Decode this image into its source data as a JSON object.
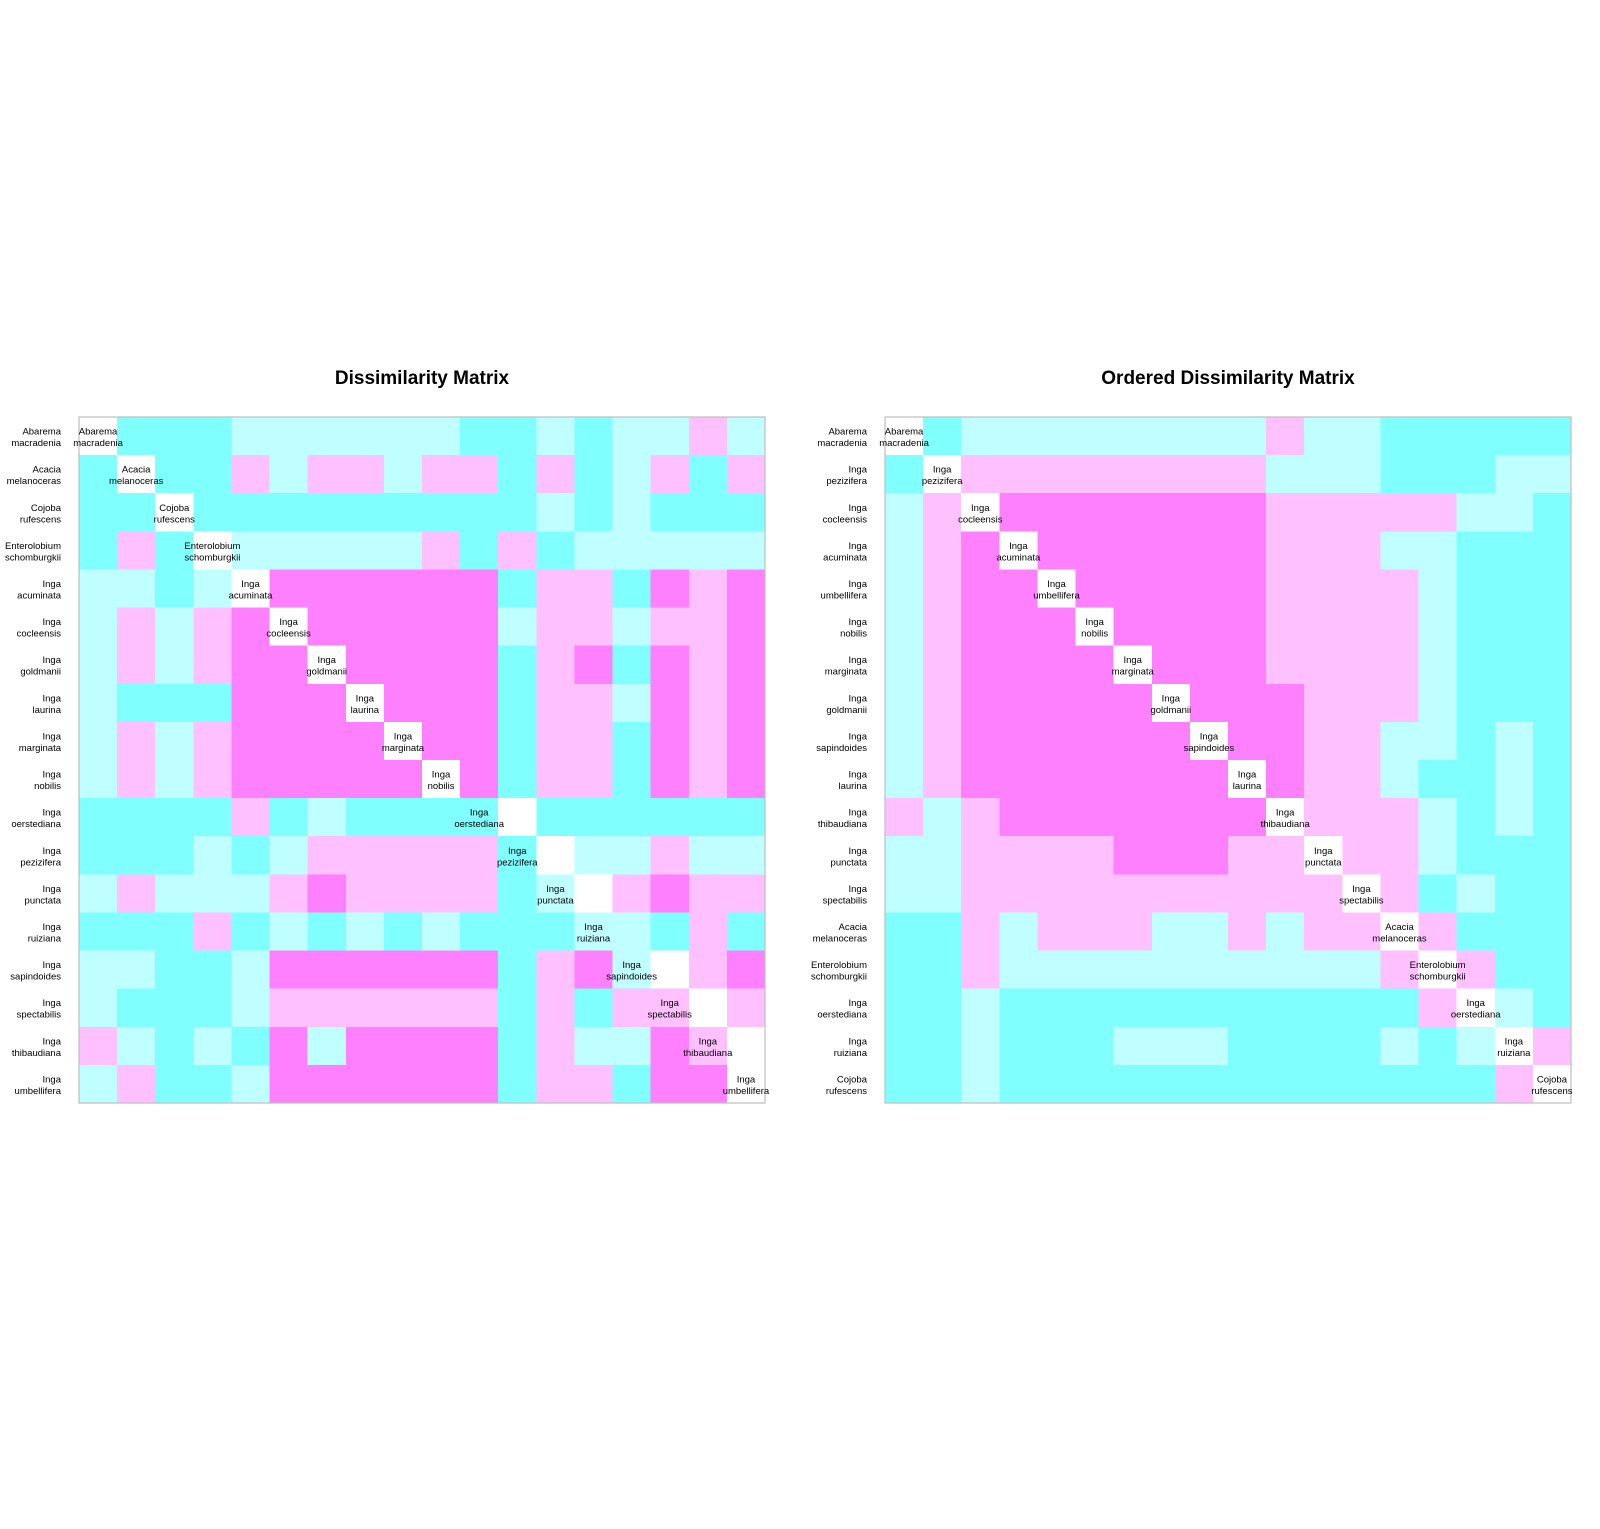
{
  "colors": {
    "0": "#FFFFFF",
    "1": "#80FFFF",
    "2": "#C0FFFF",
    "3": "#FFC0FF",
    "4": "#FF80FF",
    "frame": "#BEBEBE"
  },
  "chart_data": [
    {
      "type": "heatmap",
      "title": "Dissimilarity Matrix",
      "labels": [
        "Abarema\nmacradenia",
        "Acacia\nmelanoceras",
        "Cojoba\nrufescens",
        "Enterolobium\nschomburgkii",
        "Inga\nacuminata",
        "Inga\ncocleensis",
        "Inga\ngoldmanii",
        "Inga\nlaurina",
        "Inga\nmarginata",
        "Inga\nnobilis",
        "Inga\noerstediana",
        "Inga\npezizifera",
        "Inga\npunctata",
        "Inga\nruiziana",
        "Inga\nsapindoides",
        "Inga\nspectabilis",
        "Inga\nthibaudiana",
        "Inga\numbellifera"
      ],
      "rows": [
        "011122222211212232",
        "101132332331312313",
        "110111111111212111",
        "131022222313122222",
        "221204444441331434",
        "232340444442332334",
        "232344044441341434",
        "211144404441332434",
        "232344440441331434",
        "232344444041331434",
        "111131211110111111",
        "111212333331022322",
        "232223433331203433",
        "111312121211122131",
        "221124444441342034",
        "211123333331313303",
        "321214244441322430",
        "231124444441331440"
      ]
    },
    {
      "type": "heatmap",
      "title": "Ordered Dissimilarity Matrix",
      "labels": [
        "Abarema\nmacradenia",
        "Inga\npezizifera",
        "Inga\ncocleensis",
        "Inga\nacuminata",
        "Inga\numbellifera",
        "Inga\nnobilis",
        "Inga\nmarginata",
        "Inga\ngoldmanii",
        "Inga\nsapindoides",
        "Inga\nlaurina",
        "Inga\nthibaudiana",
        "Inga\npunctata",
        "Inga\nspectabilis",
        "Acacia\nmelanoceras",
        "Enterolobium\nschomburgkii",
        "Inga\noerstediana",
        "Inga\nruiziana",
        "Cojoba\nrufescens"
      ],
      "rows": [
        "012222222232211111",
        "103333333322211122",
        "230444444433333221",
        "234044444433322111",
        "234404444433332111",
        "234440444433332111",
        "234444044433332111",
        "234444404443332111",
        "234444440443322121",
        "234444444043321121",
        "323444444403332121",
        "223333444330332111",
        "223333333333031211",
        "113233322323303111",
        "113222222222230311",
        "112111111111113021",
        "112111222111121203",
        "112111111111111130"
      ]
    }
  ]
}
